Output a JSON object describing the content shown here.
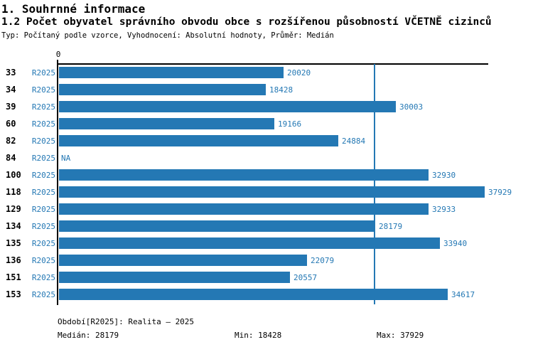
{
  "header": {
    "title1": "1. Souhrnné informace",
    "title2": "1.2 Počet obyvatel správního obvodu obce s rozšířenou působností VČETNĚ cizinců",
    "subtitle": "Typ: Počítaný podle vzorce, Vyhodnocení: Absolutní hodnoty, Průměr: Medián"
  },
  "chart_data": {
    "type": "bar",
    "orientation": "horizontal",
    "title": "1.2 Počet obyvatel správního obvodu obce s rozšířenou působností VČETNĚ cizinců",
    "series_label": "R2025",
    "axis_top_tick": "0",
    "categories": [
      "33",
      "34",
      "39",
      "60",
      "82",
      "84",
      "100",
      "118",
      "129",
      "134",
      "135",
      "136",
      "151",
      "153"
    ],
    "values": [
      20020,
      18428,
      30003,
      19166,
      24884,
      null,
      32930,
      37929,
      32933,
      28179,
      33940,
      22079,
      20557,
      34617
    ],
    "value_labels": [
      "20020",
      "18428",
      "30003",
      "19166",
      "24884",
      "NA",
      "32930",
      "37929",
      "32933",
      "28179",
      "33940",
      "22079",
      "20557",
      "34617"
    ],
    "na_label": "NA",
    "xlim": [
      0,
      38315
    ],
    "median_line_value": 28179,
    "grid": false,
    "legend_position": "none",
    "bar_color": "#2478B4",
    "label_color": "#2478B4",
    "axis_color": "#000000"
  },
  "footer": {
    "period": "Období[R2025]: Realita – 2025",
    "median": "Medián: 28179",
    "min": "Min: 18428",
    "max": "Max: 37929"
  }
}
